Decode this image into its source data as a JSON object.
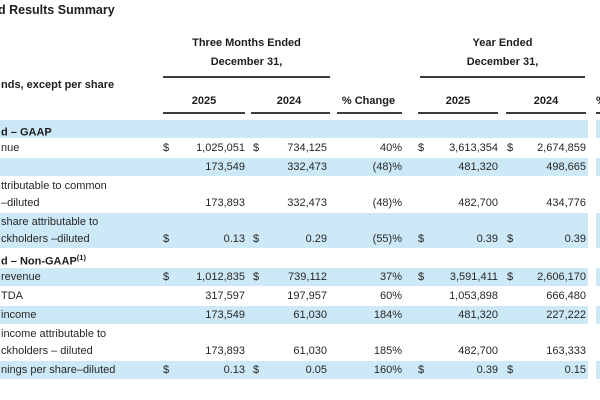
{
  "header": {
    "title": "d Results Summary",
    "note": "nds, except per share",
    "groups": [
      {
        "line1": "Three Months Ended",
        "line2": "December 31,"
      },
      {
        "line1": "Year Ended",
        "line2": "December 31,"
      }
    ],
    "cols": [
      "2025",
      "2024",
      "% Change",
      "2025",
      "2024"
    ],
    "clipped_col_fragment": "%"
  },
  "dollar_sign": "$",
  "colors": {
    "row_highlight": "#cde9f7",
    "rule": "#3d3d3d",
    "text": "#262626"
  },
  "rows": [
    {
      "type": "section",
      "highlight": true,
      "label": "d – GAAP",
      "sup": ""
    },
    {
      "type": "data",
      "highlight": false,
      "dollar": true,
      "label": "nue",
      "q25": "1,025,051",
      "q24": "734,125",
      "chg": "40%",
      "y25": "3,613,354",
      "y24": "2,674,859"
    },
    {
      "type": "data",
      "highlight": true,
      "dollar": false,
      "label": "",
      "q25": "173,549",
      "q24": "332,473",
      "chg": "(48)%",
      "y25": "481,320",
      "y24": "498,665"
    },
    {
      "type": "data2",
      "highlight": false,
      "dollar": false,
      "label1": "ttributable to common",
      "label2": "–diluted",
      "q25": "173,893",
      "q24": "332,473",
      "chg": "(48)%",
      "y25": "482,700",
      "y24": "434,776"
    },
    {
      "type": "data2",
      "highlight": true,
      "dollar": true,
      "label1": "share attributable to",
      "label2": "ckholders –diluted",
      "q25": "0.13",
      "q24": "0.29",
      "chg": "(55)%",
      "y25": "0.39",
      "y24": "0.39"
    },
    {
      "type": "section",
      "highlight": false,
      "label": "d – Non-GAAP",
      "sup": "(1)"
    },
    {
      "type": "data",
      "highlight": true,
      "dollar": true,
      "label": "revenue",
      "q25": "1,012,835",
      "q24": "739,112",
      "chg": "37%",
      "y25": "3,591,411",
      "y24": "2,606,170"
    },
    {
      "type": "data",
      "highlight": false,
      "dollar": false,
      "label": "TDA",
      "q25": "317,597",
      "q24": "197,957",
      "chg": "60%",
      "y25": "1,053,898",
      "y24": "666,480"
    },
    {
      "type": "data",
      "highlight": true,
      "dollar": false,
      "label": "income",
      "q25": "173,549",
      "q24": "61,030",
      "chg": "184%",
      "y25": "481,320",
      "y24": "227,222"
    },
    {
      "type": "data2",
      "highlight": false,
      "dollar": false,
      "label1": "income attributable to",
      "label2": "ckholders – diluted",
      "q25": "173,893",
      "q24": "61,030",
      "chg": "185%",
      "y25": "482,700",
      "y24": "163,333"
    },
    {
      "type": "data",
      "highlight": true,
      "dollar": true,
      "label": "nings per share–diluted",
      "q25": "0.13",
      "q24": "0.05",
      "chg": "160%",
      "y25": "0.39",
      "y24": "0.15"
    }
  ]
}
